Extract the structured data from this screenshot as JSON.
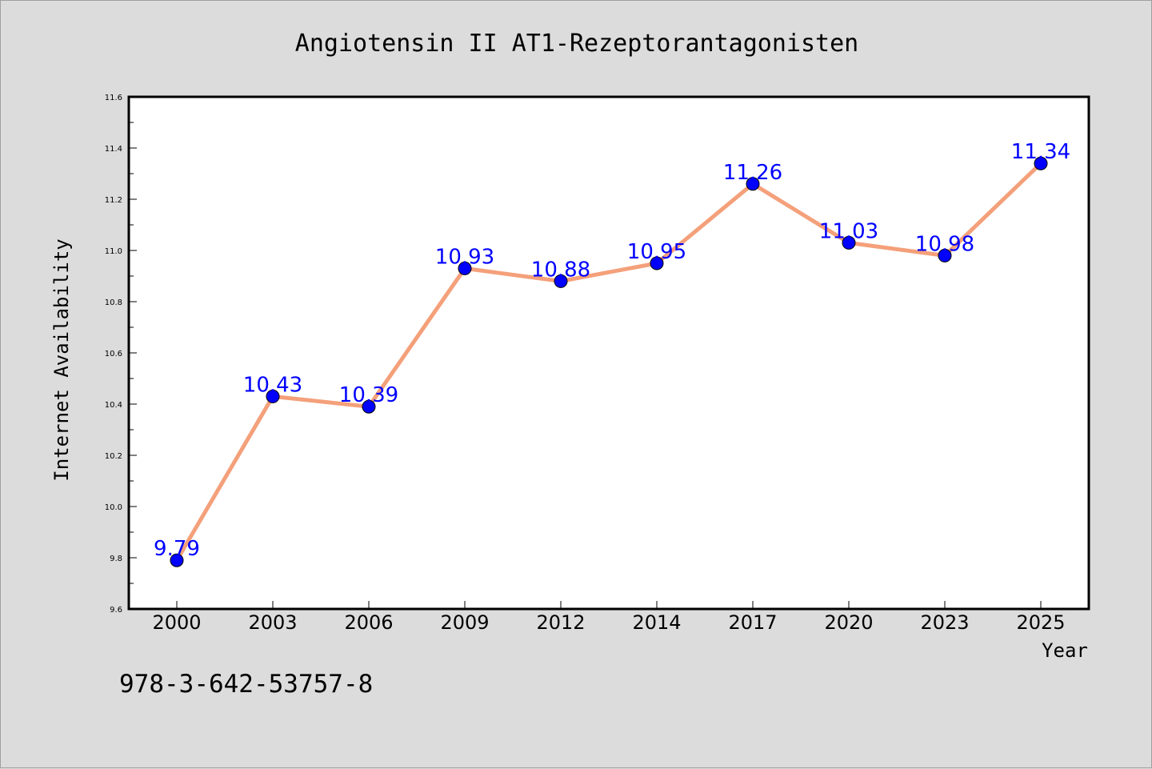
{
  "chart_data": {
    "type": "line",
    "title": "Angiotensin II AT1-Rezeptorantagonisten",
    "xlabel": "Year",
    "ylabel": "Internet Availability",
    "categories": [
      "2000",
      "2003",
      "2006",
      "2009",
      "2012",
      "2014",
      "2017",
      "2020",
      "2023",
      "2025"
    ],
    "series": [
      {
        "values": [
          9.79,
          10.43,
          10.39,
          10.93,
          10.88,
          10.95,
          11.26,
          11.03,
          10.98,
          11.34
        ],
        "data_labels": [
          "9.79",
          "10.43",
          "10.39",
          "10.93",
          "10.88",
          "10.95",
          "11.26",
          "11.03",
          "10.98",
          "11.34"
        ],
        "line_color": "#f4a07a",
        "marker_color": "#0000ff"
      }
    ],
    "ylim": [
      9.6,
      11.6
    ],
    "yticks": [
      "9.6",
      "9.8",
      "10.0",
      "10.2",
      "10.4",
      "10.6",
      "10.8",
      "11.0",
      "11.2",
      "11.4",
      "11.6"
    ],
    "grid": false,
    "legend": "none"
  },
  "footer": {
    "code": "978-3-642-53757-8"
  },
  "colors": {
    "background": "#dcdcdc",
    "plot_background": "#ffffff",
    "line": "#f4a07a",
    "marker": "#0000ff",
    "data_label": "#0000ff"
  }
}
